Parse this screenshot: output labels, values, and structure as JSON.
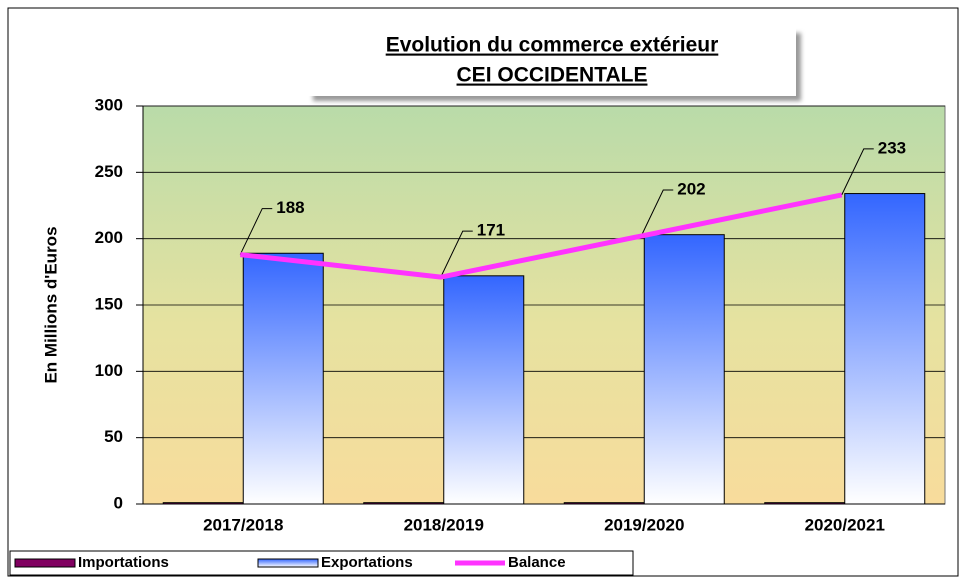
{
  "chart_data": {
    "type": "bar",
    "title": "Evolution du commerce extérieur",
    "subtitle": "CEI OCCIDENTALE",
    "y_label": "En Millions d'Euros",
    "categories": [
      "2017/2018",
      "2018/2019",
      "2019/2020",
      "2020/2021"
    ],
    "series": [
      {
        "name": "Importations",
        "type": "bar",
        "color": "#800060",
        "values": [
          1,
          1,
          1,
          1
        ]
      },
      {
        "name": "Exportations",
        "type": "bar",
        "color": "#3366ff",
        "values": [
          189,
          172,
          203,
          234
        ]
      },
      {
        "name": "Balance",
        "type": "line",
        "color": "#ff33ff",
        "values": [
          188,
          171,
          202,
          233
        ],
        "show_labels": true
      }
    ],
    "ylim": [
      0,
      300
    ],
    "yticks": [
      0,
      50,
      100,
      150,
      200,
      250,
      300
    ],
    "grid": true,
    "legend": "bottom"
  }
}
